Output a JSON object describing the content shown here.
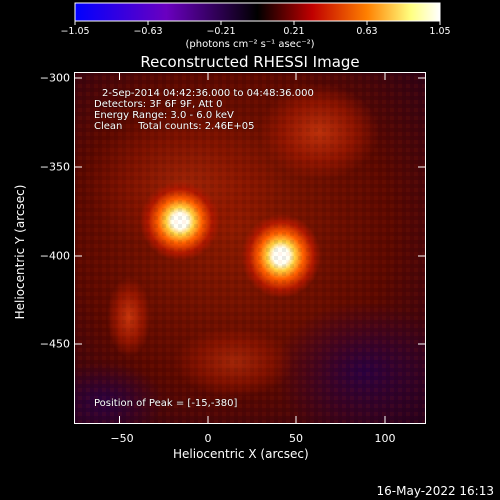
{
  "colorbar": {
    "ticks": [
      "−1.05",
      "−0.63",
      "−0.21",
      "0.21",
      "0.63",
      "1.05"
    ],
    "units_label": "(photons cm⁻² s⁻¹ asec⁻²)",
    "colors": [
      "#0000ff",
      "#6a00c0",
      "#000000",
      "#c00000",
      "#ff8000",
      "#ffff80",
      "#ffffff"
    ]
  },
  "title": "Reconstructed RHESSI Image",
  "annotations": {
    "time_range": "2-Sep-2014 04:42:36.000 to 04:48:36.000",
    "detectors": "Detectors: 3F 6F 9F, Att 0",
    "energy_range": "Energy Range: 3.0 - 6.0 keV",
    "algorithm_counts": "Clean     Total counts: 2.46E+05",
    "peak_position": "Position of Peak = [-15,-380]"
  },
  "chart_data": {
    "type": "heatmap",
    "title": "Reconstructed RHESSI Image",
    "xlabel": "Heliocentric X (arcsec)",
    "ylabel": "Heliocentric Y (arcsec)",
    "xlim": [
      -73,
      118
    ],
    "ylim": [
      -490,
      -298
    ],
    "x_ticks": [
      "−50",
      "0",
      "50",
      "100"
    ],
    "x_tick_values": [
      -50,
      0,
      50,
      100
    ],
    "y_ticks": [
      "−300",
      "−350",
      "−400",
      "−450"
    ],
    "y_tick_values": [
      -300,
      -350,
      -400,
      -450
    ],
    "colorbar_range": [
      -1.05,
      1.05
    ],
    "sources": [
      {
        "x": -15,
        "y": -380,
        "relative_intensity": 1.0
      },
      {
        "x": 40,
        "y": -398,
        "relative_intensity": 0.95
      },
      {
        "x": -43,
        "y": -428,
        "relative_intensity": 0.3
      },
      {
        "x": 65,
        "y": -330,
        "relative_intensity": 0.25
      }
    ],
    "peak": [
      -15,
      -380
    ]
  },
  "timestamp": "16-May-2022 16:13"
}
